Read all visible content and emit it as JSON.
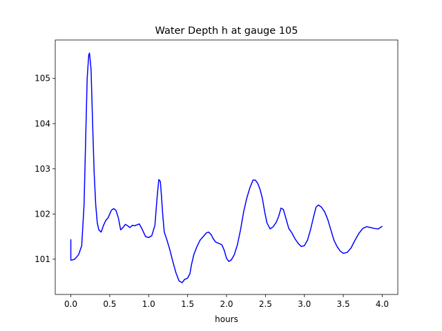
{
  "chart_data": {
    "type": "line",
    "title": "Water Depth h at gauge 105",
    "xlabel": "hours",
    "ylabel": "",
    "xlim": [
      -0.2,
      4.2
    ],
    "ylim": [
      100.22,
      105.85
    ],
    "x_ticks": [
      0.0,
      0.5,
      1.0,
      1.5,
      2.0,
      2.5,
      3.0,
      3.5,
      4.0
    ],
    "x_tick_labels": [
      "0.0",
      "0.5",
      "1.0",
      "1.5",
      "2.0",
      "2.5",
      "3.0",
      "3.5",
      "4.0"
    ],
    "y_ticks": [
      101,
      102,
      103,
      104,
      105
    ],
    "y_tick_labels": [
      "101",
      "102",
      "103",
      "104",
      "105"
    ],
    "grid": false,
    "line_color": "#0000ff",
    "series": [
      {
        "x": [
          0.0,
          0.0,
          0.01,
          0.05,
          0.1,
          0.14,
          0.17,
          0.19,
          0.21,
          0.23,
          0.24,
          0.26,
          0.28,
          0.3,
          0.32,
          0.34,
          0.36,
          0.39,
          0.42,
          0.45,
          0.48,
          0.52,
          0.55,
          0.58,
          0.61,
          0.64,
          0.67,
          0.7,
          0.73,
          0.76,
          0.79,
          0.82,
          0.85,
          0.88,
          0.92,
          0.96,
          1.0,
          1.04,
          1.08,
          1.11,
          1.13,
          1.15,
          1.16,
          1.18,
          1.2,
          1.23,
          1.27,
          1.31,
          1.35,
          1.39,
          1.43,
          1.46,
          1.5,
          1.53,
          1.55,
          1.58,
          1.62,
          1.66,
          1.7,
          1.74,
          1.77,
          1.8,
          1.83,
          1.86,
          1.9,
          1.94,
          1.97,
          2.0,
          2.03,
          2.06,
          2.1,
          2.14,
          2.18,
          2.22,
          2.26,
          2.3,
          2.34,
          2.37,
          2.4,
          2.43,
          2.46,
          2.49,
          2.52,
          2.56,
          2.6,
          2.64,
          2.67,
          2.7,
          2.73,
          2.76,
          2.8,
          2.84,
          2.88,
          2.92,
          2.96,
          3.0,
          3.04,
          3.08,
          3.12,
          3.15,
          3.18,
          3.22,
          3.26,
          3.3,
          3.34,
          3.38,
          3.42,
          3.46,
          3.5,
          3.55,
          3.6,
          3.65,
          3.7,
          3.75,
          3.8,
          3.85,
          3.9,
          3.95,
          4.0
        ],
        "values": [
          101.44,
          100.98,
          100.98,
          101.0,
          101.1,
          101.3,
          102.2,
          103.6,
          105.0,
          105.52,
          105.56,
          105.2,
          104.0,
          102.9,
          102.2,
          101.8,
          101.65,
          101.6,
          101.75,
          101.86,
          101.92,
          102.08,
          102.12,
          102.08,
          101.92,
          101.65,
          101.7,
          101.77,
          101.74,
          101.7,
          101.75,
          101.74,
          101.76,
          101.78,
          101.65,
          101.5,
          101.48,
          101.52,
          101.75,
          102.4,
          102.76,
          102.72,
          102.5,
          102.0,
          101.6,
          101.45,
          101.22,
          100.95,
          100.7,
          100.52,
          100.48,
          100.55,
          100.58,
          100.68,
          100.88,
          101.1,
          101.28,
          101.42,
          101.5,
          101.58,
          101.6,
          101.55,
          101.45,
          101.38,
          101.35,
          101.32,
          101.2,
          101.02,
          100.95,
          100.98,
          101.1,
          101.32,
          101.65,
          102.05,
          102.35,
          102.58,
          102.75,
          102.75,
          102.68,
          102.55,
          102.35,
          102.05,
          101.8,
          101.67,
          101.72,
          101.82,
          101.95,
          102.13,
          102.1,
          101.92,
          101.68,
          101.58,
          101.45,
          101.35,
          101.28,
          101.3,
          101.42,
          101.66,
          101.95,
          102.15,
          102.2,
          102.15,
          102.05,
          101.88,
          101.65,
          101.42,
          101.28,
          101.18,
          101.13,
          101.15,
          101.25,
          101.42,
          101.57,
          101.68,
          101.72,
          101.7,
          101.68,
          101.67,
          101.73
        ]
      }
    ]
  }
}
